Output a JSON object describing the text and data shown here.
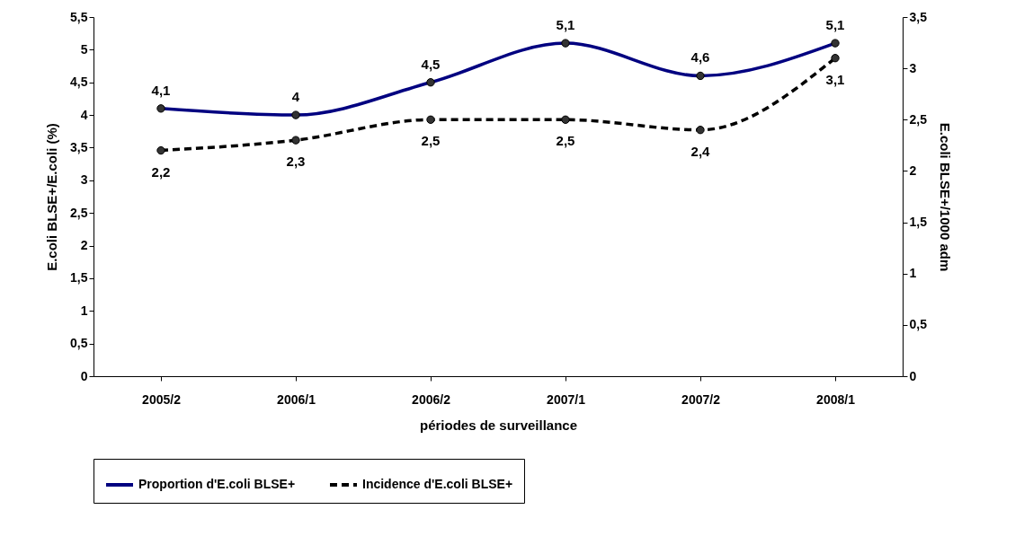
{
  "chart_data": {
    "type": "line",
    "categories": [
      "2005/2",
      "2006/1",
      "2006/2",
      "2007/1",
      "2007/2",
      "2008/1"
    ],
    "xlabel": "périodes de surveillance",
    "ylabel": "E.coli BLSE+/E.coli (%)",
    "y2label": "E.coli BLSE+/1000 adm",
    "series": [
      {
        "name": "Proportion d'E.coli BLSE+",
        "color": "#000080",
        "values": [
          4.1,
          4,
          4.5,
          5.1,
          4.6,
          5.1
        ],
        "value_labels": [
          "4,1",
          "4",
          "4,5",
          "5,1",
          "4,6",
          "5,1"
        ],
        "line_style": "solid"
      },
      {
        "name": "Incidence d'E.coli BLSE+",
        "color": "#000000",
        "axis": "y2",
        "values": [
          2.2,
          2.3,
          2.5,
          2.5,
          2.4,
          3.1
        ],
        "value_labels": [
          "2,2",
          "2,3",
          "2,5",
          "2,5",
          "2,4",
          "3,1"
        ],
        "line_style": "dashed"
      }
    ],
    "ylim": [
      0,
      5.5
    ],
    "yticks": [
      0,
      {
        "value": 0.5,
        "label": "0,5"
      },
      1,
      {
        "value": 1.5,
        "label": "1,5"
      },
      2,
      {
        "value": 2.5,
        "label": "2,5"
      },
      3,
      {
        "value": 3.5,
        "label": "3,5"
      },
      4,
      {
        "value": 4.5,
        "label": "4,5"
      },
      5,
      {
        "value": 5.5,
        "label": "5,5"
      }
    ],
    "y2lim": [
      0,
      3.5
    ],
    "y2ticks": [
      0,
      {
        "value": 0.5,
        "label": "0,5"
      },
      1,
      {
        "value": 1.5,
        "label": "1,5"
      },
      2,
      {
        "value": 2.5,
        "label": "2,5"
      },
      3,
      {
        "value": 3.5,
        "label": "3,5"
      }
    ],
    "marker": "circle",
    "grid": false,
    "legend": "bottom"
  }
}
